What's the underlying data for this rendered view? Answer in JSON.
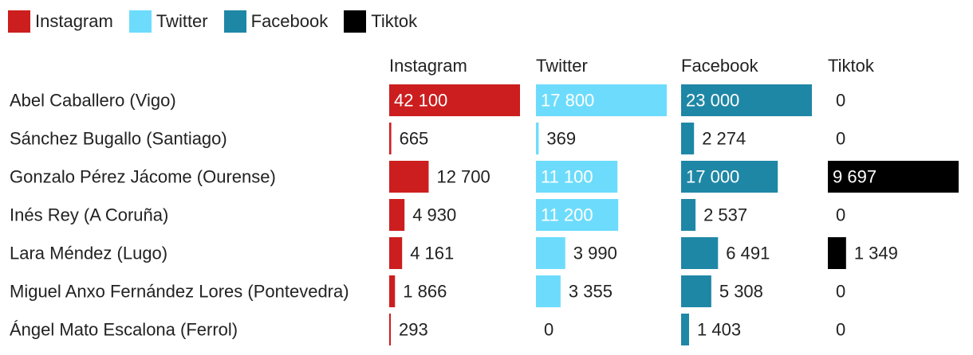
{
  "chart_data": {
    "type": "bar",
    "title": "",
    "xlabel": "",
    "ylabel": "",
    "legend_position": "top-left",
    "grid": false,
    "categories": [
      "Abel Caballero (Vigo)",
      "Sánchez Bugallo (Santiago)",
      "Gonzalo Pérez Jácome (Ourense)",
      "Inés Rey (A Coruña)",
      "Lara Méndez (Lugo)",
      "Miguel Anxo Fernández Lores (Pontevedra)",
      "Ángel Mato Escalona (Ferrol)"
    ],
    "series": [
      {
        "name": "Instagram",
        "color": "#cc1e1e",
        "values": [
          42100,
          665,
          12700,
          4930,
          4161,
          1866,
          293
        ],
        "labels": [
          "42 100",
          "665",
          "12 700",
          "4 930",
          "4 161",
          "1 866",
          "293"
        ]
      },
      {
        "name": "Twitter",
        "color": "#6ddcfc",
        "values": [
          17800,
          369,
          11100,
          11200,
          3990,
          3355,
          0
        ],
        "labels": [
          "17 800",
          "369",
          "11 100",
          "11 200",
          "3 990",
          "3 355",
          "0"
        ]
      },
      {
        "name": "Facebook",
        "color": "#1f87a6",
        "values": [
          23000,
          2274,
          17000,
          2537,
          6491,
          5308,
          1403
        ],
        "labels": [
          "23 000",
          "2 274",
          "17 000",
          "2 537",
          "6 491",
          "5 308",
          "1 403"
        ]
      },
      {
        "name": "Tiktok",
        "color": "#000000",
        "values": [
          0,
          0,
          9697,
          0,
          1349,
          0,
          0
        ],
        "labels": [
          "0",
          "0",
          "9 697",
          "0",
          "1 349",
          "0",
          "0"
        ]
      }
    ]
  }
}
